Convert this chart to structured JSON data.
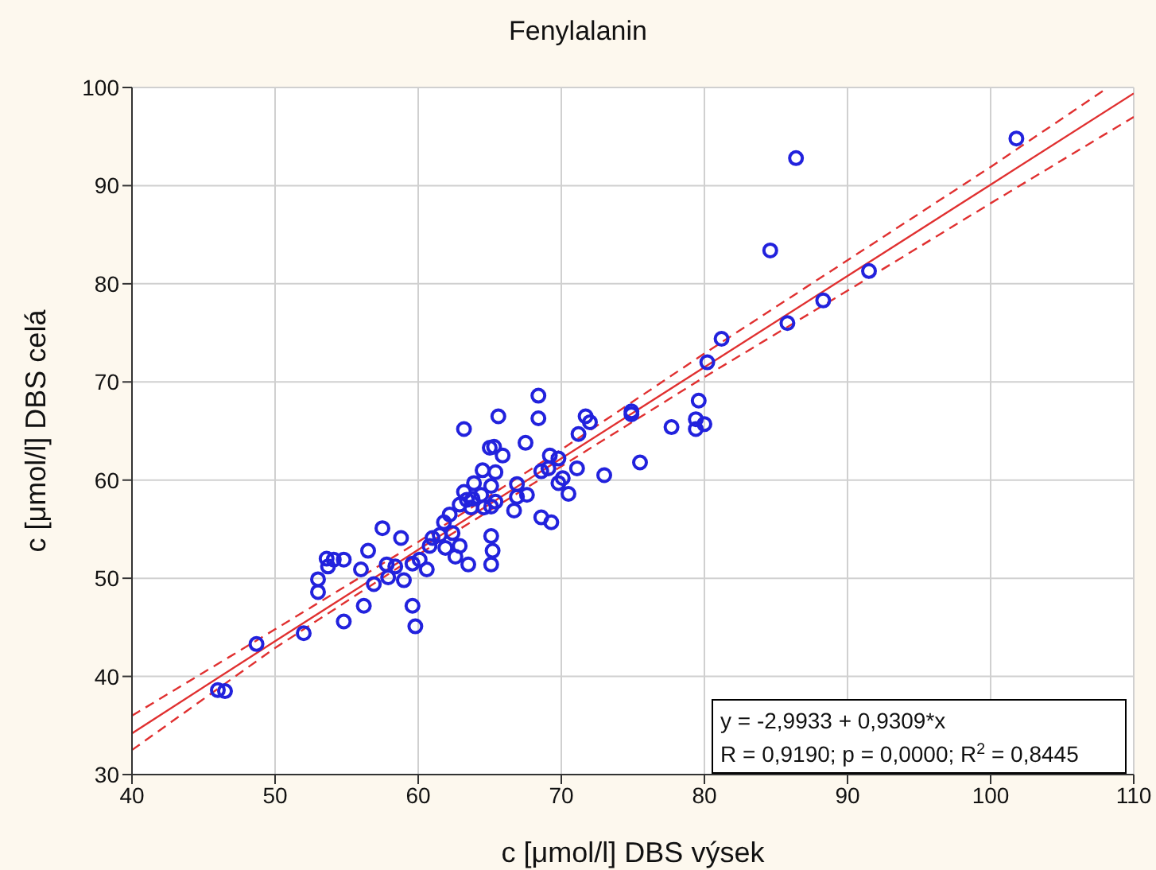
{
  "chart_data": {
    "type": "scatter",
    "title": "Fenylalanin",
    "xlabel": "c [μmol/l] DBS výsek",
    "ylabel": "c [μmol/l] DBS celá",
    "xlim": [
      40,
      110
    ],
    "xticks": [
      40,
      50,
      60,
      70,
      80,
      90,
      100,
      110
    ],
    "ylim": [
      30,
      100
    ],
    "yticks": [
      30,
      40,
      50,
      60,
      70,
      80,
      90,
      100
    ],
    "grid": true,
    "annotations": [
      "y = -2,9933 + 0,9309*x",
      "R = 0,9190; p = 0,0000; R$^{2}$ = 0,8445"
    ],
    "series": [
      {
        "type": "scatter",
        "color": "#2222dd",
        "marker": "circle",
        "x": [
          46.0,
          46.5,
          48.7,
          52.0,
          53.0,
          53.0,
          53.6,
          54.1,
          53.7,
          54.8,
          56.0,
          56.5,
          54.8,
          56.2,
          56.9,
          57.5,
          57.8,
          57.9,
          58.4,
          58.8,
          59.6,
          59.0,
          59.6,
          59.8,
          60.1,
          60.6,
          60.8,
          61.0,
          61.5,
          61.8,
          61.9,
          62.2,
          62.4,
          62.6,
          62.9,
          62.9,
          63.2,
          63.2,
          63.4,
          63.5,
          63.7,
          63.8,
          63.9,
          64.4,
          64.5,
          64.6,
          65.0,
          65.1,
          65.1,
          65.1,
          65.2,
          65.1,
          65.4,
          65.4,
          65.6,
          65.9,
          65.3,
          66.7,
          66.9,
          66.9,
          67.5,
          67.6,
          68.4,
          68.4,
          68.6,
          68.6,
          69.3,
          69.2,
          69.1,
          69.8,
          69.8,
          70.1,
          70.5,
          71.1,
          71.2,
          71.7,
          72.0,
          73.0,
          74.9,
          74.9,
          75.5,
          77.7,
          79.4,
          79.6,
          79.4,
          80.0,
          80.2,
          81.2,
          84.6,
          85.8,
          86.4,
          88.3,
          91.5,
          101.8
        ],
        "values": [
          38.6,
          38.5,
          43.3,
          44.4,
          48.6,
          49.9,
          52.0,
          51.9,
          51.2,
          51.9,
          50.9,
          52.8,
          45.6,
          47.2,
          49.4,
          55.1,
          51.4,
          50.1,
          51.2,
          54.1,
          51.5,
          49.8,
          47.2,
          45.1,
          51.9,
          50.9,
          53.3,
          54.1,
          54.4,
          55.7,
          53.1,
          56.5,
          54.6,
          52.2,
          57.5,
          53.3,
          58.8,
          65.2,
          58.0,
          51.4,
          57.2,
          58.1,
          59.7,
          58.5,
          61.0,
          57.2,
          63.3,
          59.4,
          57.3,
          54.3,
          52.8,
          51.4,
          57.8,
          60.8,
          66.5,
          62.5,
          63.4,
          56.9,
          59.6,
          58.3,
          63.8,
          58.5,
          68.6,
          66.3,
          60.9,
          56.2,
          55.7,
          62.5,
          61.2,
          62.2,
          59.7,
          60.2,
          58.6,
          61.2,
          64.7,
          66.5,
          65.9,
          60.5,
          67.0,
          66.7,
          61.8,
          65.4,
          65.2,
          68.1,
          66.2,
          65.7,
          72.0,
          74.4,
          83.4,
          76.0,
          92.8,
          78.3,
          81.3,
          94.8
        ]
      },
      {
        "type": "line",
        "color": "#e03030",
        "line_style": "solid",
        "x": [
          40,
          50,
          60,
          70,
          80,
          90,
          100,
          110
        ],
        "values": [
          34.2,
          43.6,
          52.9,
          62.2,
          71.5,
          80.8,
          90.1,
          99.4
        ]
      },
      {
        "type": "line",
        "color": "#e03030",
        "line_style": "dashed",
        "x": [
          40,
          50,
          60,
          70,
          80,
          90,
          100,
          110
        ],
        "values": [
          32.5,
          42.9,
          52.4,
          61.4,
          70.5,
          79.3,
          88.2,
          97.0
        ]
      },
      {
        "type": "line",
        "color": "#e03030",
        "line_style": "dashed",
        "x": [
          40,
          50,
          60,
          70,
          80,
          90,
          100,
          108
        ],
        "values": [
          36.0,
          44.8,
          53.7,
          63.1,
          72.9,
          82.4,
          91.9,
          99.8
        ]
      }
    ]
  }
}
